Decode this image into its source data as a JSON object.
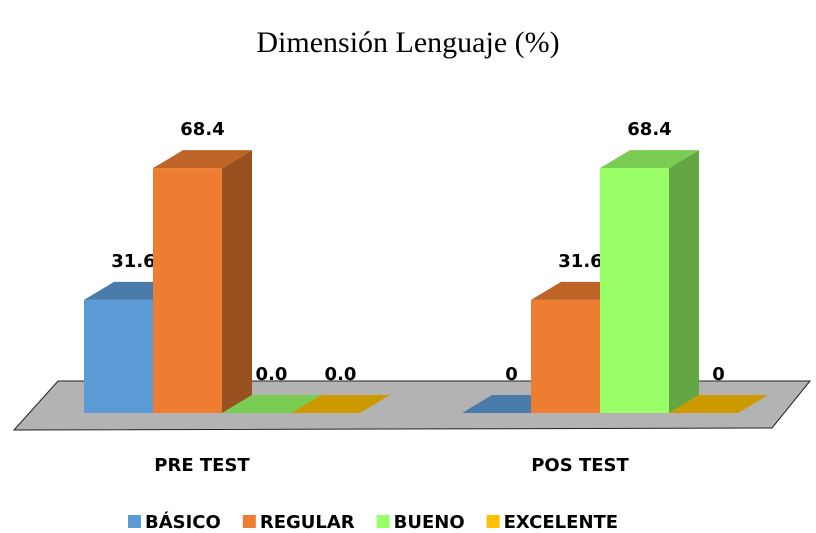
{
  "chart_data": {
    "type": "bar3d",
    "title": "Dimensión Lenguaje (%)",
    "categories": [
      "PRE TEST",
      "POS TEST"
    ],
    "series": [
      {
        "name": "BÁSICO",
        "color": "#5b9bd5",
        "values": [
          31.6,
          0
        ]
      },
      {
        "name": "REGULAR",
        "color": "#ed7d31",
        "values": [
          68.4,
          31.6
        ]
      },
      {
        "name": "BUENO",
        "color": "#99ff66",
        "values": [
          0,
          68.4
        ],
        "value_labels": [
          "0.0",
          "68.4"
        ]
      },
      {
        "name": "EXCELENTE",
        "color": "#ffc000",
        "values": [
          0,
          0
        ],
        "value_labels": [
          "0.0",
          "0"
        ]
      }
    ],
    "legend": "bottom"
  }
}
